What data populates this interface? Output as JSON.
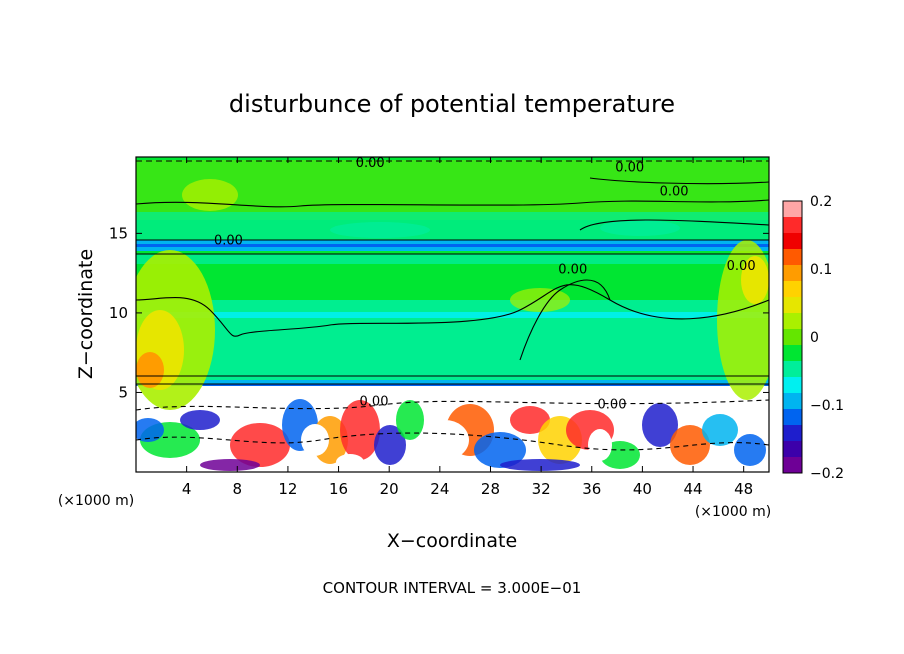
{
  "chart_data": {
    "type": "heatmap",
    "title": "disturbunce of potential temperature",
    "xlabel": "X−coordinate",
    "ylabel": "Z−coordinate",
    "x_unit_label": "(×1000 m)",
    "z_unit_label": "(×1000 m)",
    "x_range": [
      0,
      50
    ],
    "z_range": [
      0,
      19.8
    ],
    "x_ticks": [
      4,
      8,
      12,
      16,
      20,
      24,
      28,
      32,
      36,
      40,
      44,
      48
    ],
    "x_tick_labels": [
      "4",
      "8",
      "12",
      "16",
      "20",
      "24",
      "28",
      "32",
      "36",
      "40",
      "44",
      "48"
    ],
    "z_ticks": [
      5,
      10,
      15
    ],
    "z_tick_labels": [
      "5",
      "10",
      "15"
    ],
    "colorbar": {
      "range": [
        -0.2,
        0.2
      ],
      "ticks": [
        0.2,
        0.1,
        0,
        -0.1,
        -0.2
      ],
      "tick_labels": [
        "0.2",
        "0.1",
        "0",
        "−0.1",
        "−0.2"
      ],
      "colors": [
        "#ffa6a6",
        "#ff2a2a",
        "#f00000",
        "#ff5a00",
        "#ff9c00",
        "#ffd200",
        "#e6e600",
        "#aaf000",
        "#64e600",
        "#00e632",
        "#00ee9a",
        "#00f0f0",
        "#00b4f0",
        "#0064f0",
        "#1e1ecd",
        "#3c00aa",
        "#6e0096"
      ]
    },
    "contour_labels": [
      {
        "text": "0.00",
        "x": 18.5,
        "z": 19.5
      },
      {
        "text": "0.00",
        "x": 39.0,
        "z": 19.2
      },
      {
        "text": "0.00",
        "x": 42.5,
        "z": 17.7
      },
      {
        "text": "0.00",
        "x": 7.3,
        "z": 14.6
      },
      {
        "text": "0.00",
        "x": 34.5,
        "z": 12.8
      },
      {
        "text": "0.00",
        "x": 47.8,
        "z": 13.0
      },
      {
        "text": "0.00",
        "x": 18.8,
        "z": 4.5
      },
      {
        "text": "0.00",
        "x": 37.6,
        "z": 4.3
      }
    ],
    "footnote": "CONTOUR INTERVAL = 3.000E−01"
  }
}
